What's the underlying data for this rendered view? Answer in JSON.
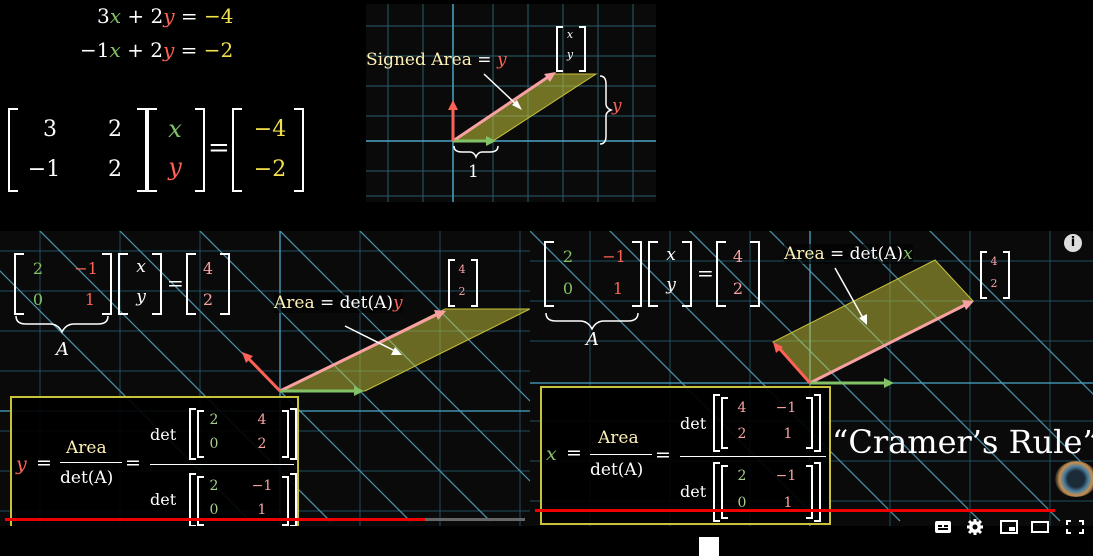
{
  "top_left": {
    "eq1": {
      "a": "3",
      "x": "x",
      "op": "+",
      "b": "2",
      "y": "y",
      "eq": "=",
      "rhs": "−4"
    },
    "eq2": {
      "a": "−1",
      "x": "x",
      "op": "+",
      "b": "2",
      "y": "y",
      "eq": "=",
      "rhs": "−2"
    },
    "matrix": {
      "m11": "3",
      "m12": "2",
      "m21": "−1",
      "m22": "2"
    },
    "vector": {
      "x": "x",
      "y": "y"
    },
    "equals": "=",
    "rhs": {
      "r1": "−4",
      "r2": "−2"
    }
  },
  "top_center": {
    "signed_area_label": "Signed  Area",
    "equals": "=",
    "y": "y",
    "vec_x": "x",
    "vec_y": "y",
    "side_y": "y",
    "base_one": "1"
  },
  "bottom_left": {
    "matrix": {
      "m11": "2",
      "m12": "−1",
      "m21": "0",
      "m22": "1"
    },
    "vector": {
      "x": "x",
      "y": "y"
    },
    "equals": "=",
    "rhs": {
      "r1": "4",
      "r2": "2"
    },
    "A_label": "A",
    "target": {
      "t1": "4",
      "t2": "2"
    },
    "area_label": "Area",
    "area_eq": "= det(A)",
    "area_var": "y",
    "formula": {
      "var": "y",
      "eq": "=",
      "num": "Area",
      "den": "det(A)",
      "eq2": "=",
      "det_top": "det",
      "top_matrix": {
        "m11": "2",
        "m12": "4",
        "m21": "0",
        "m22": "2"
      },
      "det_bottom": "det",
      "bottom_matrix": {
        "m11": "2",
        "m12": "−1",
        "m21": "0",
        "m22": "1"
      }
    }
  },
  "bottom_right": {
    "matrix": {
      "m11": "2",
      "m12": "−1",
      "m21": "0",
      "m22": "1"
    },
    "vector": {
      "x": "x",
      "y": "y"
    },
    "equals": "=",
    "rhs": {
      "r1": "4",
      "r2": "2"
    },
    "A_label": "A",
    "target": {
      "t1": "4",
      "t2": "2"
    },
    "area_label": "Area",
    "area_eq": "= det(A)",
    "area_var": "x",
    "cramer": "“Cramer’s Rule”",
    "formula": {
      "var": "x",
      "eq": "=",
      "num": "Area",
      "den": "det(A)",
      "eq2": "=",
      "det_top": "det",
      "top_matrix": {
        "m11": "4",
        "m12": "−1",
        "m21": "2",
        "m22": "1"
      },
      "det_bottom": "det",
      "bottom_matrix": {
        "m11": "2",
        "m12": "−1",
        "m21": "0",
        "m22": "1"
      }
    }
  },
  "player": {
    "info_icon": "i",
    "progress_left": 0.8,
    "progress_right": 0.88,
    "controls": [
      "subtitles-icon",
      "settings-icon",
      "miniplayer-icon",
      "theater-icon",
      "fullscreen-icon"
    ]
  }
}
